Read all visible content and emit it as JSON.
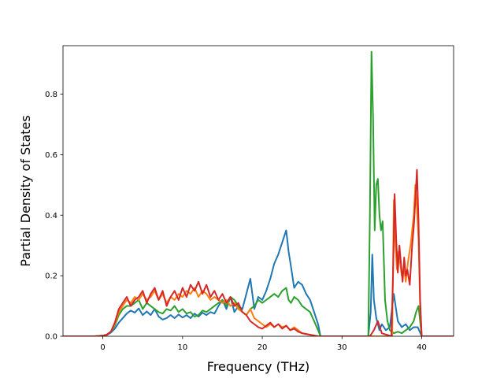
{
  "chart_data": {
    "type": "line",
    "title": "",
    "xlabel": "Frequency (THz)",
    "ylabel": "Partial Density of States",
    "xlim": [
      -5,
      44
    ],
    "ylim": [
      0,
      0.96
    ],
    "xticks": [
      0,
      10,
      20,
      30,
      40
    ],
    "xtick_labels": [
      "0",
      "10",
      "20",
      "30",
      "40"
    ],
    "yticks": [
      0.0,
      0.2,
      0.4,
      0.6,
      0.8
    ],
    "ytick_labels": [
      "0.0",
      "0.2",
      "0.4",
      "0.6",
      "0.8"
    ],
    "grid": false,
    "legend": "none",
    "series": [
      {
        "color": "#1f77b4",
        "points": [
          [
            -5,
            0
          ],
          [
            -1,
            0
          ],
          [
            0,
            0.002
          ],
          [
            0.5,
            0.004
          ],
          [
            1,
            0.012
          ],
          [
            1.5,
            0.025
          ],
          [
            2,
            0.045
          ],
          [
            2.5,
            0.06
          ],
          [
            3,
            0.075
          ],
          [
            3.5,
            0.085
          ],
          [
            4,
            0.078
          ],
          [
            4.5,
            0.092
          ],
          [
            5,
            0.07
          ],
          [
            5.5,
            0.082
          ],
          [
            6,
            0.07
          ],
          [
            6.5,
            0.09
          ],
          [
            7,
            0.065
          ],
          [
            7.5,
            0.055
          ],
          [
            8,
            0.06
          ],
          [
            8.5,
            0.07
          ],
          [
            9,
            0.06
          ],
          [
            9.5,
            0.072
          ],
          [
            10,
            0.062
          ],
          [
            10.5,
            0.07
          ],
          [
            11,
            0.06
          ],
          [
            11.5,
            0.075
          ],
          [
            12,
            0.065
          ],
          [
            12.5,
            0.078
          ],
          [
            13,
            0.07
          ],
          [
            13.5,
            0.08
          ],
          [
            14,
            0.075
          ],
          [
            14.5,
            0.1
          ],
          [
            15,
            0.12
          ],
          [
            15.5,
            0.09
          ],
          [
            16,
            0.13
          ],
          [
            16.5,
            0.08
          ],
          [
            17,
            0.1
          ],
          [
            17.5,
            0.09
          ],
          [
            18,
            0.14
          ],
          [
            18.5,
            0.19
          ],
          [
            19,
            0.09
          ],
          [
            19.5,
            0.13
          ],
          [
            20,
            0.12
          ],
          [
            20.5,
            0.15
          ],
          [
            21,
            0.19
          ],
          [
            21.5,
            0.24
          ],
          [
            22,
            0.27
          ],
          [
            22.5,
            0.31
          ],
          [
            23,
            0.35
          ],
          [
            23.3,
            0.28
          ],
          [
            23.6,
            0.23
          ],
          [
            24,
            0.16
          ],
          [
            24.5,
            0.18
          ],
          [
            25,
            0.17
          ],
          [
            25.5,
            0.14
          ],
          [
            26,
            0.12
          ],
          [
            26.5,
            0.08
          ],
          [
            27,
            0.04
          ],
          [
            27.3,
            0
          ],
          [
            33.3,
            0
          ],
          [
            33.6,
            0.08
          ],
          [
            33.8,
            0.27
          ],
          [
            34,
            0.12
          ],
          [
            34.3,
            0.06
          ],
          [
            34.7,
            0.02
          ],
          [
            35,
            0.04
          ],
          [
            35.5,
            0.02
          ],
          [
            36,
            0.03
          ],
          [
            36.5,
            0.14
          ],
          [
            37,
            0.05
          ],
          [
            37.5,
            0.03
          ],
          [
            38,
            0.04
          ],
          [
            38.5,
            0.02
          ],
          [
            39,
            0.03
          ],
          [
            39.5,
            0.03
          ],
          [
            40,
            0
          ],
          [
            44,
            0
          ]
        ]
      },
      {
        "color": "#2ca02c",
        "points": [
          [
            -5,
            0
          ],
          [
            -1,
            0
          ],
          [
            0,
            0.002
          ],
          [
            0.5,
            0.006
          ],
          [
            1,
            0.015
          ],
          [
            1.5,
            0.035
          ],
          [
            2,
            0.07
          ],
          [
            2.5,
            0.09
          ],
          [
            3,
            0.1
          ],
          [
            3.5,
            0.1
          ],
          [
            4,
            0.11
          ],
          [
            4.5,
            0.12
          ],
          [
            5,
            0.09
          ],
          [
            5.5,
            0.11
          ],
          [
            6,
            0.1
          ],
          [
            6.5,
            0.09
          ],
          [
            7,
            0.08
          ],
          [
            7.5,
            0.075
          ],
          [
            8,
            0.09
          ],
          [
            8.5,
            0.085
          ],
          [
            9,
            0.1
          ],
          [
            9.5,
            0.08
          ],
          [
            10,
            0.09
          ],
          [
            10.5,
            0.075
          ],
          [
            11,
            0.08
          ],
          [
            11.5,
            0.065
          ],
          [
            12,
            0.07
          ],
          [
            12.5,
            0.085
          ],
          [
            13,
            0.08
          ],
          [
            13.5,
            0.09
          ],
          [
            14,
            0.1
          ],
          [
            14.5,
            0.11
          ],
          [
            15,
            0.12
          ],
          [
            15.5,
            0.1
          ],
          [
            16,
            0.13
          ],
          [
            16.5,
            0.12
          ],
          [
            17,
            0.1
          ],
          [
            17.5,
            0.08
          ],
          [
            18,
            0.07
          ],
          [
            18.5,
            0.09
          ],
          [
            19,
            0.1
          ],
          [
            19.5,
            0.12
          ],
          [
            20,
            0.11
          ],
          [
            20.5,
            0.12
          ],
          [
            21,
            0.13
          ],
          [
            21.5,
            0.14
          ],
          [
            22,
            0.13
          ],
          [
            22.5,
            0.15
          ],
          [
            23,
            0.16
          ],
          [
            23.3,
            0.12
          ],
          [
            23.6,
            0.11
          ],
          [
            24,
            0.13
          ],
          [
            24.5,
            0.12
          ],
          [
            25,
            0.1
          ],
          [
            25.5,
            0.09
          ],
          [
            26,
            0.08
          ],
          [
            26.5,
            0.05
          ],
          [
            27,
            0.02
          ],
          [
            27.3,
            0
          ],
          [
            33.3,
            0
          ],
          [
            33.5,
            0.4
          ],
          [
            33.7,
            0.94
          ],
          [
            33.9,
            0.72
          ],
          [
            34.1,
            0.35
          ],
          [
            34.3,
            0.5
          ],
          [
            34.5,
            0.52
          ],
          [
            34.7,
            0.4
          ],
          [
            34.9,
            0.35
          ],
          [
            35.1,
            0.38
          ],
          [
            35.4,
            0.12
          ],
          [
            35.7,
            0.05
          ],
          [
            36,
            0.02
          ],
          [
            36.5,
            0.01
          ],
          [
            37,
            0.015
          ],
          [
            37.5,
            0.01
          ],
          [
            38,
            0.02
          ],
          [
            38.5,
            0.03
          ],
          [
            39,
            0.05
          ],
          [
            39.3,
            0.08
          ],
          [
            39.6,
            0.1
          ],
          [
            40,
            0
          ],
          [
            44,
            0
          ]
        ]
      },
      {
        "color": "#ff7f0e",
        "points": [
          [
            -5,
            0
          ],
          [
            -1,
            0
          ],
          [
            0,
            0.002
          ],
          [
            0.5,
            0.005
          ],
          [
            1,
            0.015
          ],
          [
            1.5,
            0.04
          ],
          [
            2,
            0.08
          ],
          [
            2.5,
            0.1
          ],
          [
            3,
            0.12
          ],
          [
            3.5,
            0.11
          ],
          [
            4,
            0.13
          ],
          [
            4.5,
            0.12
          ],
          [
            5,
            0.14
          ],
          [
            5.5,
            0.12
          ],
          [
            6,
            0.13
          ],
          [
            6.5,
            0.15
          ],
          [
            7,
            0.12
          ],
          [
            7.5,
            0.14
          ],
          [
            8,
            0.11
          ],
          [
            8.5,
            0.13
          ],
          [
            9,
            0.12
          ],
          [
            9.5,
            0.14
          ],
          [
            10,
            0.13
          ],
          [
            10.5,
            0.15
          ],
          [
            11,
            0.14
          ],
          [
            11.5,
            0.16
          ],
          [
            12,
            0.13
          ],
          [
            12.5,
            0.15
          ],
          [
            13,
            0.14
          ],
          [
            13.5,
            0.12
          ],
          [
            14,
            0.13
          ],
          [
            14.5,
            0.12
          ],
          [
            15,
            0.11
          ],
          [
            15.5,
            0.12
          ],
          [
            16,
            0.1
          ],
          [
            16.5,
            0.11
          ],
          [
            17,
            0.09
          ],
          [
            17.5,
            0.08
          ],
          [
            18,
            0.07
          ],
          [
            18.5,
            0.09
          ],
          [
            19,
            0.06
          ],
          [
            19.5,
            0.05
          ],
          [
            20,
            0.04
          ],
          [
            20.5,
            0.03
          ],
          [
            21,
            0.04
          ],
          [
            21.5,
            0.03
          ],
          [
            22,
            0.04
          ],
          [
            22.5,
            0.03
          ],
          [
            23,
            0.035
          ],
          [
            23.5,
            0.02
          ],
          [
            24,
            0.03
          ],
          [
            24.5,
            0.02
          ],
          [
            25,
            0.01
          ],
          [
            26,
            0.005
          ],
          [
            27,
            0
          ],
          [
            36.3,
            0
          ],
          [
            36.5,
            0.45
          ],
          [
            36.7,
            0.3
          ],
          [
            36.9,
            0.22
          ],
          [
            37.1,
            0.28
          ],
          [
            37.3,
            0.24
          ],
          [
            37.5,
            0.2
          ],
          [
            37.8,
            0.22
          ],
          [
            38,
            0.18
          ],
          [
            38.3,
            0.25
          ],
          [
            38.6,
            0.3
          ],
          [
            38.8,
            0.35
          ],
          [
            39,
            0.4
          ],
          [
            39.2,
            0.5
          ],
          [
            39.4,
            0.42
          ],
          [
            39.6,
            0.32
          ],
          [
            39.8,
            0.1
          ],
          [
            40,
            0
          ],
          [
            44,
            0
          ]
        ]
      },
      {
        "color": "#d62728",
        "points": [
          [
            -5,
            0
          ],
          [
            -1,
            0
          ],
          [
            0,
            0.002
          ],
          [
            0.5,
            0.005
          ],
          [
            1,
            0.015
          ],
          [
            1.5,
            0.045
          ],
          [
            2,
            0.09
          ],
          [
            2.5,
            0.11
          ],
          [
            3,
            0.13
          ],
          [
            3.5,
            0.1
          ],
          [
            4,
            0.12
          ],
          [
            4.5,
            0.13
          ],
          [
            5,
            0.15
          ],
          [
            5.5,
            0.11
          ],
          [
            6,
            0.14
          ],
          [
            6.5,
            0.16
          ],
          [
            7,
            0.12
          ],
          [
            7.5,
            0.15
          ],
          [
            8,
            0.1
          ],
          [
            8.5,
            0.13
          ],
          [
            9,
            0.15
          ],
          [
            9.5,
            0.12
          ],
          [
            10,
            0.16
          ],
          [
            10.5,
            0.13
          ],
          [
            11,
            0.17
          ],
          [
            11.5,
            0.15
          ],
          [
            12,
            0.18
          ],
          [
            12.5,
            0.14
          ],
          [
            13,
            0.17
          ],
          [
            13.5,
            0.13
          ],
          [
            14,
            0.15
          ],
          [
            14.5,
            0.12
          ],
          [
            15,
            0.14
          ],
          [
            15.5,
            0.11
          ],
          [
            16,
            0.13
          ],
          [
            16.5,
            0.1
          ],
          [
            17,
            0.11
          ],
          [
            17.5,
            0.08
          ],
          [
            18,
            0.07
          ],
          [
            18.5,
            0.05
          ],
          [
            19,
            0.04
          ],
          [
            19.5,
            0.03
          ],
          [
            20,
            0.025
          ],
          [
            20.5,
            0.035
          ],
          [
            21,
            0.045
          ],
          [
            21.5,
            0.03
          ],
          [
            22,
            0.04
          ],
          [
            22.5,
            0.025
          ],
          [
            23,
            0.035
          ],
          [
            23.5,
            0.02
          ],
          [
            24,
            0.025
          ],
          [
            24.5,
            0.015
          ],
          [
            25,
            0.01
          ],
          [
            26,
            0.005
          ],
          [
            27,
            0
          ],
          [
            33.5,
            0
          ],
          [
            34,
            0.02
          ],
          [
            34.5,
            0.05
          ],
          [
            35,
            0.01
          ],
          [
            36.2,
            0
          ],
          [
            36.4,
            0.2
          ],
          [
            36.6,
            0.47
          ],
          [
            36.8,
            0.32
          ],
          [
            37,
            0.21
          ],
          [
            37.2,
            0.3
          ],
          [
            37.4,
            0.24
          ],
          [
            37.6,
            0.18
          ],
          [
            37.8,
            0.26
          ],
          [
            38,
            0.2
          ],
          [
            38.2,
            0.22
          ],
          [
            38.5,
            0.17
          ],
          [
            38.8,
            0.3
          ],
          [
            39,
            0.36
          ],
          [
            39.2,
            0.45
          ],
          [
            39.4,
            0.55
          ],
          [
            39.6,
            0.38
          ],
          [
            39.8,
            0.12
          ],
          [
            40,
            0
          ],
          [
            44,
            0
          ]
        ]
      }
    ]
  }
}
